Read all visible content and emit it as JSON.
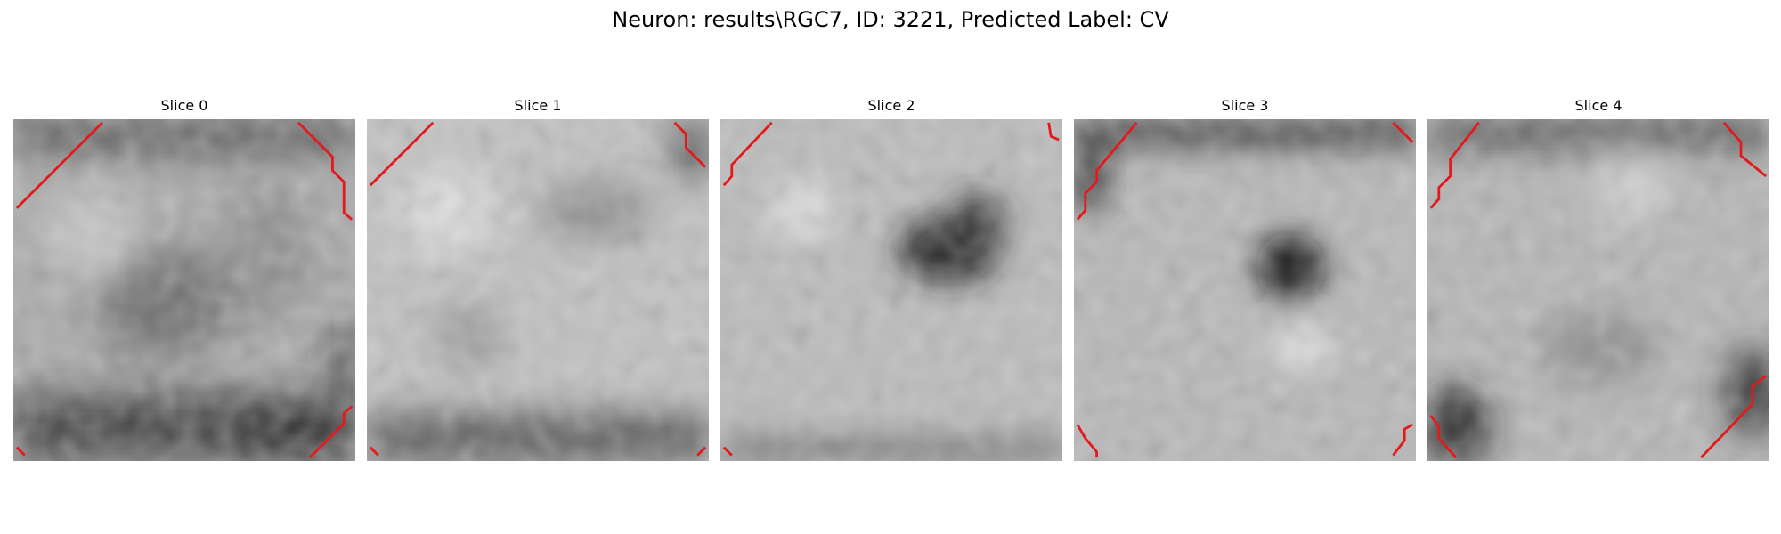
{
  "figure": {
    "title": "Neuron: results\\RGC7, ID: 3221, Predicted Label: CV"
  },
  "panels": [
    {
      "label": "Slice 0"
    },
    {
      "label": "Slice 1"
    },
    {
      "label": "Slice 2"
    },
    {
      "label": "Slice 3"
    },
    {
      "label": "Slice 4"
    }
  ],
  "colors": {
    "background": "#ffffff",
    "contour": "#e31a1c"
  },
  "colormap": "gray"
}
